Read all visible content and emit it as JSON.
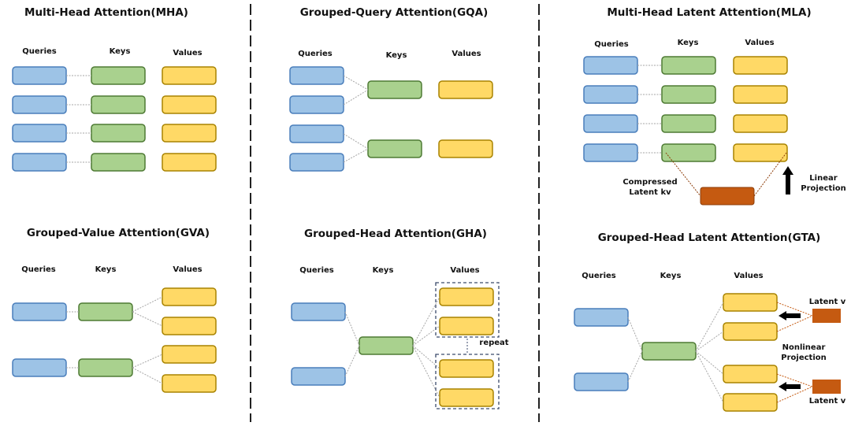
{
  "colors": {
    "query_fill": "#9dc3e6",
    "query_stroke": "#4a7ebb",
    "key_fill": "#a9d18e",
    "key_stroke": "#4e7a34",
    "value_fill": "#ffd966",
    "value_stroke": "#a88300",
    "latent_fill": "#c55a11",
    "connector": "#a6a6a6",
    "latent_connector": "#c55a11"
  },
  "panels": {
    "mha": {
      "title": "Multi-Head Attention(MHA)",
      "queries": "Queries",
      "keys": "Keys",
      "values": "Values"
    },
    "gqa": {
      "title": "Grouped-Query Attention(GQA)",
      "queries": "Queries",
      "keys": "Keys",
      "values": "Values"
    },
    "mla": {
      "title": "Multi-Head Latent Attention(MLA)",
      "queries": "Queries",
      "keys": "Keys",
      "values": "Values",
      "compressed_1": "Compressed",
      "compressed_2": "Latent kv",
      "projection_1": "Linear",
      "projection_2": "Projection"
    },
    "gva": {
      "title": "Grouped-Value Attention(GVA)",
      "queries": "Queries",
      "keys": "Keys",
      "values": "Values"
    },
    "gha": {
      "title": "Grouped-Head Attention(GHA)",
      "queries": "Queries",
      "keys": "Keys",
      "values": "Values",
      "repeat": "repeat"
    },
    "gta": {
      "title": "Grouped-Head Latent Attention(GTA)",
      "queries": "Queries",
      "keys": "Keys",
      "values": "Values",
      "latent_top": "Latent v",
      "latent_bottom": "Latent v",
      "projection_1": "Nonlinear",
      "projection_2": "Projection"
    }
  }
}
